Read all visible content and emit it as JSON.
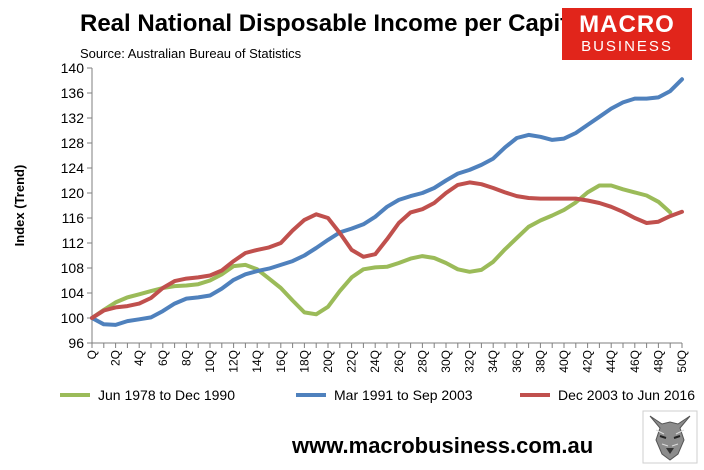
{
  "header": {
    "title": "Real National Disposable Income per Capita",
    "source": "Source: Australian Bureau of Statistics"
  },
  "logo": {
    "line1": "MACRO",
    "line2": "BUSINESS",
    "color": "#e1251b"
  },
  "footer": {
    "website": "www.macrobusiness.com.au"
  },
  "chart_data": {
    "type": "line",
    "ylabel": "Index (Trend)",
    "xlabel": "",
    "ylim": [
      96,
      140
    ],
    "yticks": [
      96,
      100,
      104,
      108,
      112,
      116,
      120,
      124,
      128,
      132,
      136,
      140
    ],
    "grid": false,
    "legend_position": "bottom",
    "x": [
      0,
      1,
      2,
      3,
      4,
      5,
      6,
      7,
      8,
      9,
      10,
      11,
      12,
      13,
      14,
      15,
      16,
      17,
      18,
      19,
      20,
      21,
      22,
      23,
      24,
      25,
      26,
      27,
      28,
      29,
      30,
      31,
      32,
      33,
      34,
      35,
      36,
      37,
      38,
      39,
      40,
      41,
      42,
      43,
      44,
      45,
      46,
      47,
      48,
      49,
      50
    ],
    "x_tick_labels": [
      "Q",
      "2Q",
      "4Q",
      "6Q",
      "8Q",
      "10Q",
      "12Q",
      "14Q",
      "16Q",
      "18Q",
      "20Q",
      "22Q",
      "24Q",
      "26Q",
      "28Q",
      "30Q",
      "32Q",
      "34Q",
      "36Q",
      "38Q",
      "40Q",
      "42Q",
      "44Q",
      "46Q",
      "48Q",
      "50Q"
    ],
    "series": [
      {
        "name": "Jun 1978 to Dec 1990",
        "color": "#9bbb59",
        "values": [
          100,
          101.3,
          102.5,
          103.3,
          103.8,
          104.3,
          104.8,
          105.1,
          105.2,
          105.4,
          106,
          107,
          108.3,
          108.5,
          107.8,
          106.3,
          104.8,
          102.8,
          100.9,
          100.6,
          101.8,
          104.3,
          106.5,
          107.8,
          108.1,
          108.2,
          108.8,
          109.5,
          109.9,
          109.6,
          108.8,
          107.8,
          107.4,
          107.7,
          109,
          111,
          112.8,
          114.6,
          115.6,
          116.4,
          117.3,
          118.5,
          120.1,
          121.2,
          121.2,
          120.6,
          120.1,
          119.6,
          118.6,
          116.9,
          null
        ]
      },
      {
        "name": "Mar 1991 to Sep 2003",
        "color": "#4f81bd",
        "values": [
          100,
          99,
          98.9,
          99.5,
          99.8,
          100.1,
          101.1,
          102.3,
          103.1,
          103.3,
          103.6,
          104.7,
          106.1,
          107,
          107.5,
          107.9,
          108.5,
          109.1,
          110,
          111.2,
          112.5,
          113.7,
          114.3,
          115,
          116.2,
          117.8,
          118.9,
          119.5,
          120,
          120.8,
          122,
          123.1,
          123.7,
          124.5,
          125.5,
          127.3,
          128.8,
          129.3,
          129,
          128.5,
          128.7,
          129.6,
          130.9,
          132.2,
          133.5,
          134.5,
          135.1,
          135.1,
          135.3,
          136.3,
          138.2
        ]
      },
      {
        "name": "Dec 2003 to Jun 2016",
        "color": "#c0504d",
        "values": [
          100,
          101.2,
          101.7,
          101.9,
          102.3,
          103.2,
          104.8,
          105.9,
          106.3,
          106.5,
          106.8,
          107.6,
          109.1,
          110.4,
          110.9,
          111.3,
          112,
          114,
          115.7,
          116.6,
          116,
          113.6,
          110.9,
          109.8,
          110.2,
          112.6,
          115.2,
          116.9,
          117.4,
          118.4,
          120,
          121.3,
          121.7,
          121.4,
          120.8,
          120.1,
          119.5,
          119.2,
          119.1,
          119.1,
          119.1,
          119.1,
          118.8,
          118.4,
          117.8,
          117,
          116,
          115.2,
          115.4,
          116.3,
          117
        ]
      }
    ]
  }
}
